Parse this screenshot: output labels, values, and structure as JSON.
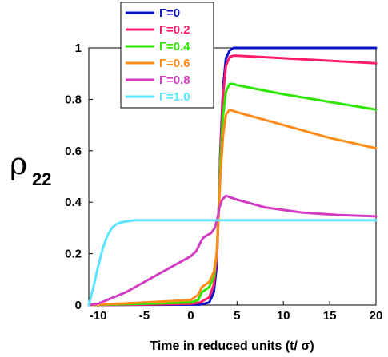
{
  "chart_data": {
    "type": "line",
    "xlabel": "Time in reduced units (t/ σ)",
    "ylabel": "ρ",
    "ylabel_subscript": "22",
    "xlim": [
      -11,
      20
    ],
    "ylim": [
      0,
      1
    ],
    "xticks": [
      "-10",
      "-5",
      "0",
      "5",
      "10",
      "15",
      "20"
    ],
    "yticks": [
      "0",
      "0.2",
      "0.4",
      "0.6",
      "0.8",
      "1"
    ],
    "grid": false,
    "legend_position": "top-left",
    "series": [
      {
        "name": "Γ=0",
        "color": "#0a14c8",
        "x": [
          -11,
          1,
          2,
          2.5,
          2.8,
          3.0,
          3.2,
          3.5,
          3.8,
          4.2,
          4.6,
          5,
          10,
          20
        ],
        "y": [
          0,
          0.002,
          0.01,
          0.05,
          0.15,
          0.35,
          0.6,
          0.85,
          0.96,
          0.99,
          1.0,
          1.0,
          1.0,
          1.0
        ]
      },
      {
        "name": "Γ=0.2",
        "color": "#ff1a6e",
        "x": [
          -11,
          -5,
          0,
          1,
          2,
          2.5,
          2.8,
          3.0,
          3.2,
          3.5,
          3.8,
          4.2,
          4.6,
          5,
          10,
          15,
          20
        ],
        "y": [
          0,
          0.002,
          0.005,
          0.01,
          0.03,
          0.08,
          0.18,
          0.35,
          0.58,
          0.82,
          0.93,
          0.965,
          0.97,
          0.97,
          0.96,
          0.95,
          0.94
        ]
      },
      {
        "name": "Γ=0.4",
        "color": "#2ee600",
        "x": [
          -11,
          -5,
          0,
          0.8,
          1.2,
          2,
          2.5,
          2.8,
          3.0,
          3.2,
          3.5,
          3.8,
          4.2,
          4.6,
          5,
          10,
          15,
          20
        ],
        "y": [
          0,
          0.005,
          0.01,
          0.02,
          0.05,
          0.07,
          0.11,
          0.2,
          0.35,
          0.55,
          0.74,
          0.83,
          0.86,
          0.86,
          0.855,
          0.82,
          0.79,
          0.76
        ]
      },
      {
        "name": "Γ=0.6",
        "color": "#ff8c1a",
        "x": [
          -11,
          -5,
          0,
          0.8,
          1.2,
          2,
          2.5,
          2.8,
          3.0,
          3.2,
          3.5,
          3.8,
          4.2,
          4.6,
          5,
          10,
          15,
          20
        ],
        "y": [
          0,
          0.01,
          0.02,
          0.04,
          0.07,
          0.09,
          0.13,
          0.2,
          0.33,
          0.5,
          0.66,
          0.74,
          0.76,
          0.755,
          0.75,
          0.7,
          0.65,
          0.61
        ]
      },
      {
        "name": "Γ=0.8",
        "color": "#d23cc3",
        "x": [
          -11,
          -10,
          -7,
          -5,
          -3,
          -1,
          0,
          0.6,
          1.0,
          1.3,
          1.7,
          2.2,
          2.6,
          2.9,
          3.1,
          3.4,
          3.8,
          4.2,
          5,
          8,
          12,
          16,
          20
        ],
        "y": [
          0,
          0.005,
          0.05,
          0.09,
          0.13,
          0.17,
          0.19,
          0.21,
          0.24,
          0.26,
          0.27,
          0.28,
          0.3,
          0.34,
          0.38,
          0.41,
          0.425,
          0.42,
          0.41,
          0.38,
          0.36,
          0.35,
          0.345
        ]
      },
      {
        "name": "Γ=1.0",
        "color": "#5ae6ff",
        "x": [
          -11,
          -10.5,
          -10,
          -9.5,
          -9,
          -8.5,
          -8,
          -7.5,
          -7,
          -6,
          -5,
          0,
          5,
          10,
          15,
          20
        ],
        "y": [
          0,
          0.07,
          0.15,
          0.22,
          0.27,
          0.3,
          0.315,
          0.322,
          0.325,
          0.33,
          0.33,
          0.33,
          0.33,
          0.33,
          0.33,
          0.33
        ]
      }
    ]
  }
}
